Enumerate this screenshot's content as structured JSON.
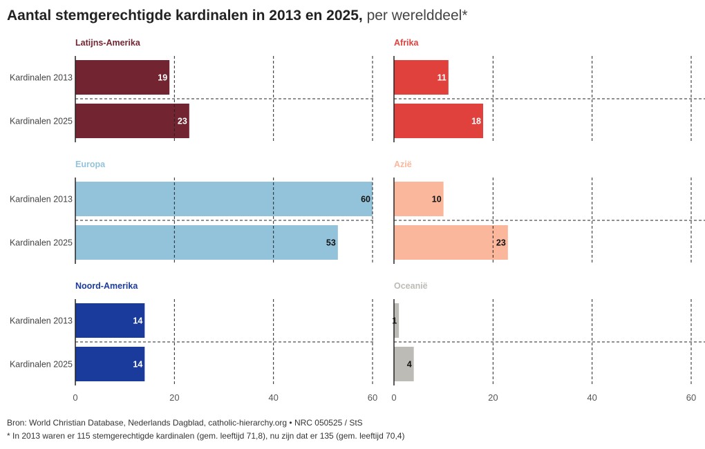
{
  "title": {
    "bold": "Aantal stemgerechtigde kardinalen in 2013 en 2025,",
    "light": "per werelddeel*"
  },
  "chart_data": {
    "type": "bar",
    "orientation": "horizontal",
    "categories": [
      "Kardinalen 2013",
      "Kardinalen 2025"
    ],
    "xlim": [
      0,
      60
    ],
    "xticks": [
      0,
      20,
      40,
      60
    ],
    "panels": [
      {
        "name": "Latijns-Amerika",
        "color": "#722430",
        "values": [
          19,
          23
        ],
        "label_color": "#ffffff"
      },
      {
        "name": "Afrika",
        "color": "#e0413d",
        "values": [
          11,
          18
        ],
        "label_color": "#ffffff"
      },
      {
        "name": "Europa",
        "color": "#93c3da",
        "values": [
          60,
          53
        ],
        "label_color": "#111111"
      },
      {
        "name": "Azië",
        "color": "#fbb79c",
        "values": [
          10,
          23
        ],
        "label_color": "#111111"
      },
      {
        "name": "Noord-Amerika",
        "color": "#1a3a9c",
        "values": [
          14,
          14
        ],
        "label_color": "#ffffff"
      },
      {
        "name": "Oceanië",
        "color": "#bdbbb6",
        "values": [
          1,
          4
        ],
        "label_color": "#111111"
      }
    ]
  },
  "footnotes": {
    "source": "Bron: World Christian Database, Nederlands Dagblad, catholic-hierarchy.org • NRC 050525 / StS",
    "note": "* In 2013 waren er 115 stemgerechtigde kardinalen (gem. leeftijd 71,8), nu zijn dat er 135 (gem. leeftijd 70,4)"
  }
}
